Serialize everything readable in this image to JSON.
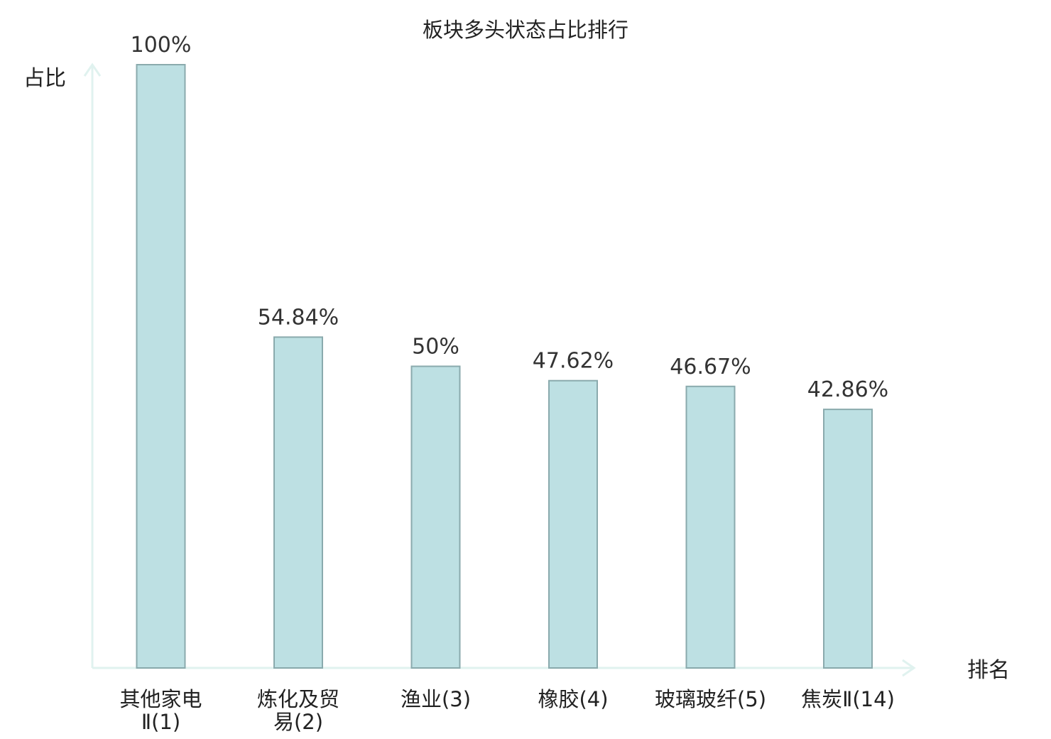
{
  "chart_data": {
    "type": "bar",
    "title": "板块多头状态占比排行",
    "ylabel": "占比",
    "xlabel": "排名",
    "ylim": [
      0,
      100
    ],
    "grid": false,
    "categories": [
      {
        "name": "其他家电",
        "rank": "Ⅱ(1)",
        "highlight": false
      },
      {
        "name": "炼化及贸",
        "rank": "易(2)",
        "highlight": false
      },
      {
        "name": "渔业",
        "rank": "(3)",
        "highlight": false
      },
      {
        "name": "橡胶",
        "rank": "(4)",
        "highlight": false
      },
      {
        "name": "玻璃玻纤",
        "rank": "(5)",
        "highlight": false
      },
      {
        "name": "焦炭Ⅱ",
        "rank": "(14)",
        "highlight": true
      }
    ],
    "values": [
      100,
      54.84,
      50,
      47.62,
      46.67,
      42.86
    ],
    "value_labels": [
      "100%",
      "54.84%",
      "50%",
      "47.62%",
      "46.67%",
      "42.86%"
    ],
    "colors": {
      "bar_fill": "#bde0e3",
      "bar_stroke": "#8aaaad",
      "axis": "#e0f2ef",
      "highlight_label": "#dd1111",
      "text": "#222222",
      "value_text": "#333333"
    }
  }
}
